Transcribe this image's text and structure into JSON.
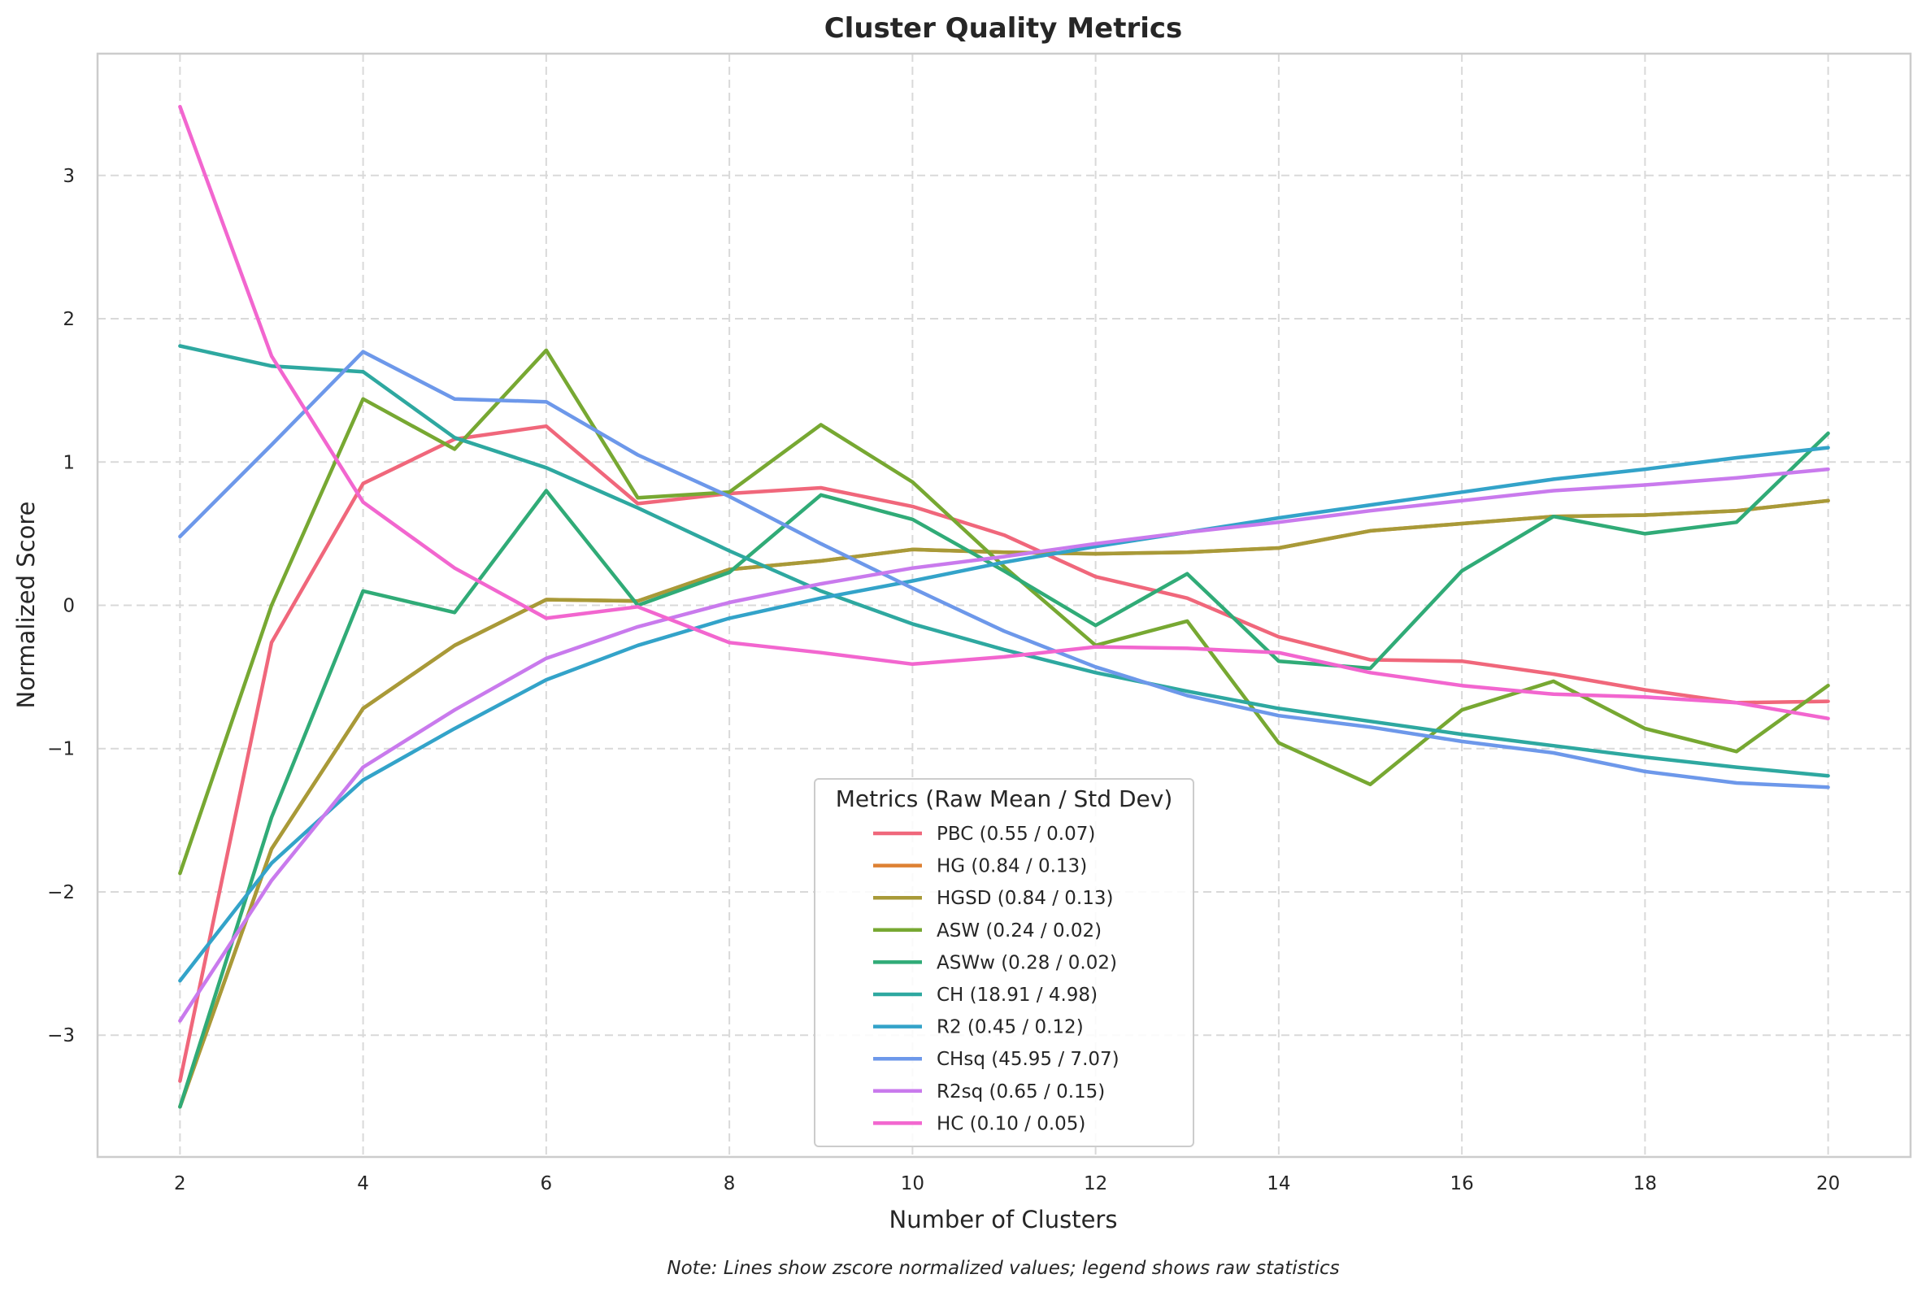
{
  "chart_data": {
    "type": "line",
    "title": "Cluster Quality Metrics",
    "xlabel": "Number of Clusters",
    "ylabel": "Normalized Score",
    "note": "Note: Lines show zscore normalized values; legend shows raw statistics",
    "xlim": [
      1.1,
      20.9
    ],
    "ylim": [
      -3.85,
      3.85
    ],
    "x_ticks": [
      2,
      4,
      6,
      8,
      10,
      12,
      14,
      16,
      18,
      20
    ],
    "y_ticks": [
      -3,
      -2,
      -1,
      0,
      1,
      2,
      3
    ],
    "y_tick_labels": [
      "−3",
      "−2",
      "−1",
      "0",
      "1",
      "2",
      "3"
    ],
    "grid": true,
    "legend_title": "Metrics (Raw Mean / Std Dev)",
    "legend_position": "bottom-center",
    "x": [
      2,
      3,
      4,
      5,
      6,
      7,
      8,
      9,
      10,
      11,
      12,
      13,
      14,
      15,
      16,
      17,
      18,
      19,
      20
    ],
    "series": [
      {
        "name": "PBC (0.55 / 0.07)",
        "color": "#f0677b",
        "values": [
          -3.32,
          -0.26,
          0.85,
          1.16,
          1.25,
          0.71,
          0.78,
          0.82,
          0.69,
          0.49,
          0.2,
          0.05,
          -0.22,
          -0.38,
          -0.39,
          -0.48,
          -0.59,
          -0.68,
          -0.67
        ]
      },
      {
        "name": "HG (0.84 / 0.13)",
        "color": "#de8133",
        "values": [
          -3.5,
          -1.7,
          -0.72,
          -0.28,
          0.04,
          0.03,
          0.25,
          0.31,
          0.39,
          0.37,
          0.36,
          0.37,
          0.4,
          0.52,
          0.57,
          0.62,
          0.63,
          0.66,
          0.73
        ]
      },
      {
        "name": "HGSD (0.84 / 0.13)",
        "color": "#a89a38",
        "values": [
          -3.5,
          -1.7,
          -0.72,
          -0.28,
          0.04,
          0.03,
          0.25,
          0.31,
          0.39,
          0.37,
          0.36,
          0.37,
          0.4,
          0.52,
          0.57,
          0.62,
          0.63,
          0.66,
          0.73
        ]
      },
      {
        "name": "ASW (0.24 / 0.02)",
        "color": "#77a832",
        "values": [
          -1.87,
          0.0,
          1.44,
          1.09,
          1.78,
          0.75,
          0.79,
          1.26,
          0.86,
          0.27,
          -0.28,
          -0.11,
          -0.96,
          -1.25,
          -0.73,
          -0.53,
          -0.86,
          -1.02,
          -0.56
        ]
      },
      {
        "name": "ASWw (0.28 / 0.02)",
        "color": "#30ab77",
        "values": [
          -3.5,
          -1.48,
          0.1,
          -0.05,
          0.8,
          0.0,
          0.23,
          0.77,
          0.6,
          0.24,
          -0.14,
          0.22,
          -0.39,
          -0.44,
          0.24,
          0.62,
          0.5,
          0.58,
          1.2
        ]
      },
      {
        "name": "CH (18.91 / 4.98)",
        "color": "#2ea8a0",
        "values": [
          1.81,
          1.67,
          1.63,
          1.17,
          0.96,
          0.68,
          0.38,
          0.1,
          -0.13,
          -0.31,
          -0.47,
          -0.6,
          -0.72,
          -0.81,
          -0.9,
          -0.98,
          -1.06,
          -1.13,
          -1.19
        ]
      },
      {
        "name": "R2 (0.45 / 0.12)",
        "color": "#33a3c9",
        "values": [
          -2.62,
          -1.8,
          -1.22,
          -0.86,
          -0.52,
          -0.28,
          -0.09,
          0.05,
          0.17,
          0.3,
          0.41,
          0.51,
          0.61,
          0.7,
          0.79,
          0.88,
          0.95,
          1.03,
          1.1
        ]
      },
      {
        "name": "CHsq (45.95 / 7.07)",
        "color": "#6d98ea",
        "values": [
          0.48,
          1.12,
          1.77,
          1.44,
          1.42,
          1.05,
          0.76,
          0.43,
          0.12,
          -0.18,
          -0.43,
          -0.63,
          -0.77,
          -0.85,
          -0.95,
          -1.03,
          -1.16,
          -1.24,
          -1.27
        ]
      },
      {
        "name": "R2sq (0.65 / 0.15)",
        "color": "#c97aed",
        "values": [
          -2.9,
          -1.92,
          -1.13,
          -0.73,
          -0.37,
          -0.15,
          0.02,
          0.15,
          0.26,
          0.34,
          0.43,
          0.51,
          0.58,
          0.66,
          0.73,
          0.8,
          0.84,
          0.89,
          0.95
        ]
      },
      {
        "name": "HC (0.10 / 0.05)",
        "color": "#f266cf",
        "values": [
          3.48,
          1.74,
          0.72,
          0.26,
          -0.09,
          -0.01,
          -0.26,
          -0.33,
          -0.41,
          -0.36,
          -0.29,
          -0.3,
          -0.33,
          -0.47,
          -0.56,
          -0.62,
          -0.64,
          -0.68,
          -0.79
        ]
      }
    ]
  }
}
